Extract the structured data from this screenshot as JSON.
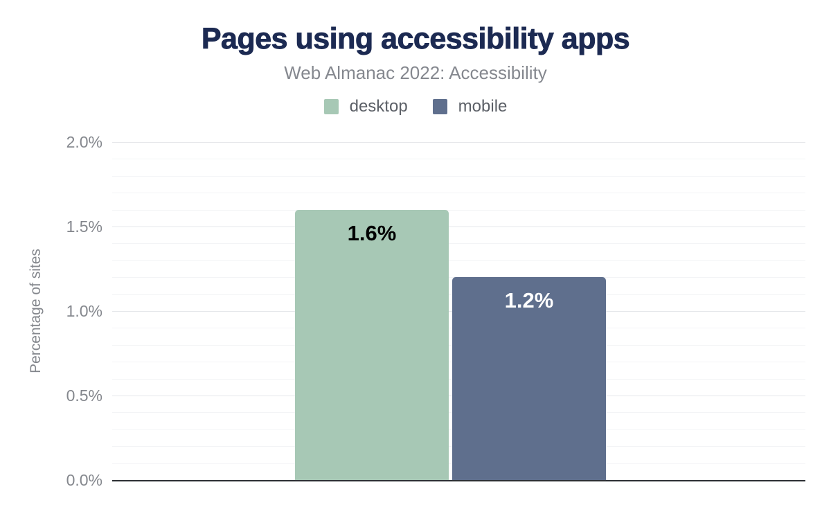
{
  "chart_data": {
    "type": "bar",
    "title": "Pages using accessibility apps",
    "subtitle": "Web Almanac 2022: Accessibility",
    "ylabel": "Percentage of sites",
    "xlabel": "",
    "ylim": [
      0,
      2.0
    ],
    "ytick_major_step": 0.5,
    "ytick_minor_step": 0.1,
    "yticks": [
      {
        "value": 0.0,
        "label": "0.0%"
      },
      {
        "value": 0.5,
        "label": "0.5%"
      },
      {
        "value": 1.0,
        "label": "1.0%"
      },
      {
        "value": 1.5,
        "label": "1.5%"
      },
      {
        "value": 2.0,
        "label": "2.0%"
      }
    ],
    "grid": true,
    "legend_position": "top",
    "series": [
      {
        "name": "desktop",
        "value": 1.6,
        "label": "1.6%",
        "color": "#a7c8b5",
        "label_color": "#000000"
      },
      {
        "name": "mobile",
        "value": 1.2,
        "label": "1.2%",
        "color": "#5f6f8d",
        "label_color": "#ffffff"
      }
    ]
  },
  "colors": {
    "title": "#1c2a52",
    "subtitle": "#85888f",
    "axis_text": "#84878d",
    "legend_text": "#5c6067",
    "gridline_minor": "#f3f4f6",
    "gridline_major": "#e4e6e9",
    "baseline": "#2c2f33",
    "background": "#ffffff"
  }
}
